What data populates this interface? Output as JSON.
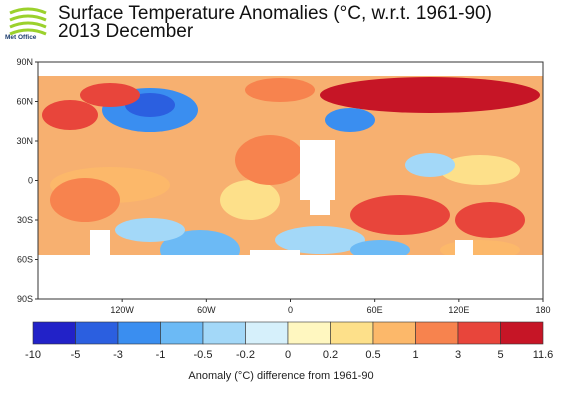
{
  "header": {
    "logo_text": "Met Office",
    "title": "Surface Temperature Anomalies (°C, w.r.t. 1961-90)",
    "subtitle": "2013 December"
  },
  "map": {
    "lat_labels": [
      "90N",
      "60N",
      "30N",
      "0",
      "30S",
      "60S",
      "90S"
    ],
    "lon_labels": [
      "120W",
      "60W",
      "0",
      "60E",
      "120E",
      "180"
    ],
    "land_color": "#ffffff",
    "missing_color": "#ffffff"
  },
  "colorbar": {
    "tick_labels": [
      "-10",
      "-5",
      "-3",
      "-1",
      "-0.5",
      "-0.2",
      "0",
      "0.2",
      "0.5",
      "1",
      "3",
      "5",
      "11.6"
    ],
    "colors": [
      "#2222c8",
      "#2b5fe0",
      "#3a8ef0",
      "#6cbaf5",
      "#a3d8f8",
      "#d6f0fb",
      "#fff7c0",
      "#fde08a",
      "#fcb86a",
      "#f7834e",
      "#e8453b",
      "#c61526"
    ],
    "caption": "Anomaly (°C) difference from 1961-90"
  }
}
